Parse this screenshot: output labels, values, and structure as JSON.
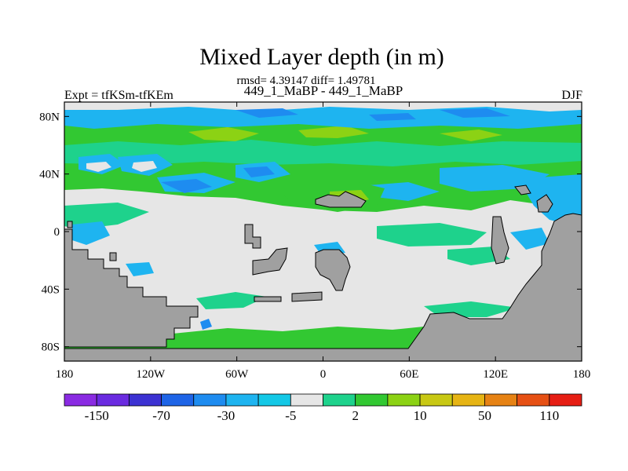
{
  "chart_data": {
    "type": "heatmap",
    "title": "Mixed Layer depth (in m)",
    "stats_line": "rmsd= 4.39147  diff= 1.49781",
    "left_label": "Expt = tfKSm-tfKEm",
    "center_label": "449_1_MaBP - 449_1_MaBP",
    "right_label": "DJF",
    "x_range": [
      -180,
      180
    ],
    "y_range": [
      -90,
      90
    ],
    "x_ticks": [
      {
        "value": -180,
        "label": "180"
      },
      {
        "value": -120,
        "label": "120W"
      },
      {
        "value": -60,
        "label": "60W"
      },
      {
        "value": 0,
        "label": "0"
      },
      {
        "value": 60,
        "label": "60E"
      },
      {
        "value": 120,
        "label": "120E"
      },
      {
        "value": 180,
        "label": "180"
      }
    ],
    "y_ticks": [
      {
        "value": 80,
        "label": "80N"
      },
      {
        "value": 40,
        "label": "40N"
      },
      {
        "value": 0,
        "label": "0"
      },
      {
        "value": -40,
        "label": "40S"
      },
      {
        "value": -80,
        "label": "80S"
      }
    ],
    "colorbar": {
      "colors": [
        "#8a2be2",
        "#6a2be0",
        "#3c32d2",
        "#1e64e6",
        "#1e8cf0",
        "#1eb4f0",
        "#14c8e6",
        "#e6e6e6",
        "#1ed28c",
        "#32c832",
        "#8cd214",
        "#c8c814",
        "#e6b414",
        "#e68214",
        "#e65014",
        "#e61e14"
      ],
      "labels": [
        {
          "boundary": 1,
          "text": "-150"
        },
        {
          "boundary": 3,
          "text": "-70"
        },
        {
          "boundary": 5,
          "text": "-30"
        },
        {
          "boundary": 7,
          "text": "-5"
        },
        {
          "boundary": 9,
          "text": "2"
        },
        {
          "boundary": 11,
          "text": "10"
        },
        {
          "boundary": 13,
          "text": "50"
        },
        {
          "boundary": 15,
          "text": "110"
        }
      ]
    },
    "land_color": "#a0a0a0",
    "background_field_color": "#e6e6e6"
  }
}
